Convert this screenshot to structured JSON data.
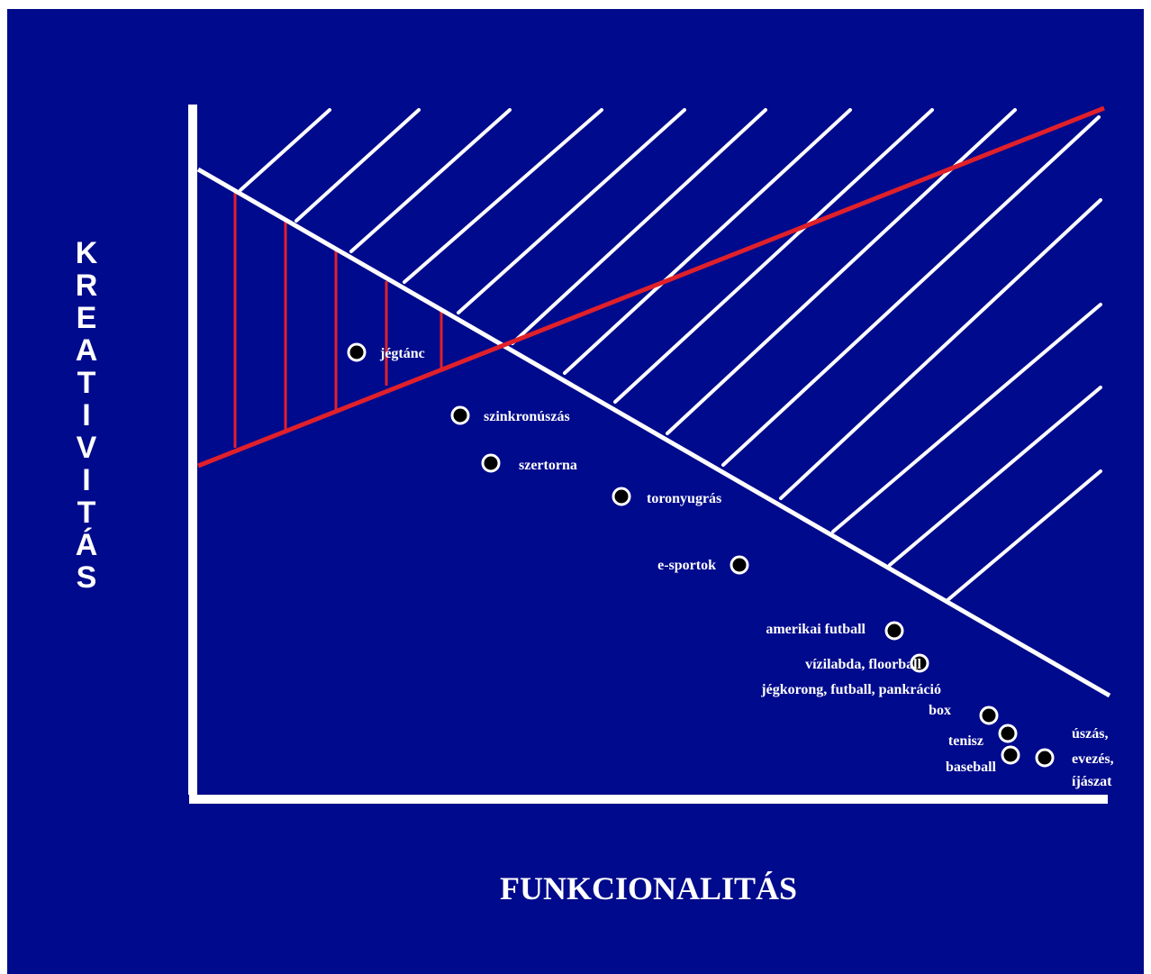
{
  "colors": {
    "background": "#000a8c",
    "axis": "#ffffff",
    "hatch": "#ffffff",
    "red_line": "#e0202a",
    "point_fill": "#000000",
    "point_stroke": "#ffffff"
  },
  "axes": {
    "y_label": "KREATIVITÁS",
    "x_label": "FUNKCIONALITÁS"
  },
  "points": [
    {
      "id": "jegtanc",
      "label": "jégtánc"
    },
    {
      "id": "szinkronuszas",
      "label": "szinkronúszás"
    },
    {
      "id": "szertorna",
      "label": "szertorna"
    },
    {
      "id": "toronyugras",
      "label": "toronyugrás"
    },
    {
      "id": "esportok",
      "label": "e-sportok"
    },
    {
      "id": "amerikai-futball",
      "label": "amerikai futball"
    },
    {
      "id": "vizilabda",
      "label": "vízilabda,  floorball"
    },
    {
      "id": "jegkorong",
      "label": "jégkorong, futball,  pankráció"
    },
    {
      "id": "box",
      "label": "box"
    },
    {
      "id": "tenisz",
      "label": "tenisz"
    },
    {
      "id": "baseball",
      "label": "baseball"
    },
    {
      "id": "uszas",
      "label": "úszás,"
    },
    {
      "id": "evezes",
      "label": "evezés,"
    },
    {
      "id": "ijaszat",
      "label": "íjászat"
    }
  ]
}
